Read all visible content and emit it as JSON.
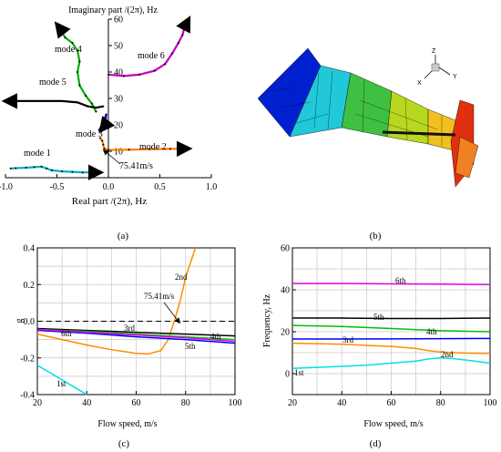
{
  "panels": {
    "a": {
      "caption": "(a)"
    },
    "b": {
      "caption": "(b)"
    },
    "c": {
      "caption": "(c)"
    },
    "d": {
      "caption": "(d)"
    }
  },
  "fem_axes": {
    "z": "Z",
    "y": "Y",
    "x": "X"
  },
  "colors": {
    "mode1": "#00b0b8",
    "mode2": "#ff8000",
    "mode3": "#0000ff",
    "mode4": "#00b000",
    "mode5": "#000000",
    "mode6": "#c000c0",
    "c1st": "#00e0e0",
    "c2nd": "#ff8c00",
    "c3rd": "#000000",
    "c4th": "#00c000",
    "c5th": "#0000ff",
    "c6th": "#e000e0"
  },
  "chart_data": [
    {
      "id": "a",
      "type": "scatter",
      "xlabel": "Real part /(2π), Hz",
      "ylabel": "Imaginary part /(2π), Hz",
      "xlim": [
        -1.0,
        1.0
      ],
      "ylim": [
        0,
        60
      ],
      "xticks": [
        "-1.0",
        "-0.5",
        "0.0",
        "0.5",
        "1.0"
      ],
      "yticks": [
        "10",
        "20",
        "30",
        "40",
        "50",
        "60"
      ],
      "annotations": [
        "75.41m/s"
      ],
      "series": [
        {
          "name": "mode 1",
          "x": [
            -0.95,
            -0.9,
            -0.8,
            -0.72,
            -0.65,
            -0.6,
            -0.55,
            -0.45,
            -0.35,
            -0.25,
            -0.15,
            -0.08
          ],
          "y": [
            3.5,
            3.6,
            3.8,
            4.0,
            4.2,
            3.5,
            2.8,
            2.4,
            2.2,
            2.0,
            2.0,
            2.0
          ]
        },
        {
          "name": "mode 2",
          "x": [
            -0.08,
            -0.06,
            -0.05,
            -0.04,
            0.0,
            0.2,
            0.4,
            0.6,
            0.78
          ],
          "y": [
            15,
            14,
            12.5,
            11,
            10.5,
            10.6,
            10.8,
            10.9,
            11.0
          ]
        },
        {
          "name": "mode 3",
          "x": [
            -0.09,
            -0.06,
            -0.04,
            -0.02,
            -0.03,
            -0.05,
            -0.07
          ],
          "y": [
            18,
            20,
            22,
            24,
            21,
            19,
            18
          ]
        },
        {
          "name": "mode 4",
          "x": [
            -0.12,
            -0.16,
            -0.22,
            -0.28,
            -0.3,
            -0.28,
            -0.3,
            -0.35,
            -0.42,
            -0.45,
            -0.48,
            -0.5
          ],
          "y": [
            25,
            28,
            31,
            35,
            40,
            44,
            48,
            51,
            53,
            55,
            57,
            58
          ]
        },
        {
          "name": "mode 5",
          "x": [
            -0.05,
            -0.12,
            -0.2,
            -0.3,
            -0.45,
            -0.6,
            -0.75,
            -0.9,
            -1.0
          ],
          "y": [
            27,
            26.5,
            27,
            28.5,
            29,
            29,
            29,
            29,
            29
          ]
        },
        {
          "name": "mode 6",
          "x": [
            0.0,
            0.15,
            0.3,
            0.45,
            0.55,
            0.62,
            0.68,
            0.72,
            0.74,
            0.78
          ],
          "y": [
            39,
            38.5,
            39,
            40.5,
            43,
            47,
            51,
            54,
            57,
            60
          ]
        }
      ]
    },
    {
      "id": "c",
      "type": "line",
      "xlabel": "Flow speed, m/s",
      "ylabel": "g",
      "xlim": [
        20,
        100
      ],
      "ylim": [
        -0.4,
        0.4
      ],
      "xticks": [
        "20",
        "40",
        "60",
        "80",
        "100"
      ],
      "yticks": [
        "-0.4",
        "-0.2",
        "0.0",
        "0.2",
        "0.4"
      ],
      "annotations": [
        "75.41m/s"
      ],
      "series": [
        {
          "name": "1st",
          "x": [
            20,
            25,
            30,
            35,
            40
          ],
          "y": [
            -0.24,
            -0.28,
            -0.32,
            -0.36,
            -0.4
          ]
        },
        {
          "name": "2nd",
          "x": [
            20,
            30,
            40,
            50,
            60,
            65,
            70,
            73,
            75.41,
            78,
            80,
            84
          ],
          "y": [
            -0.07,
            -0.1,
            -0.13,
            -0.155,
            -0.175,
            -0.178,
            -0.16,
            -0.1,
            0.0,
            0.12,
            0.24,
            0.42
          ]
        },
        {
          "name": "3rd",
          "x": [
            20,
            40,
            60,
            80,
            100
          ],
          "y": [
            -0.04,
            -0.05,
            -0.06,
            -0.07,
            -0.08
          ]
        },
        {
          "name": "4th",
          "x": [
            20,
            40,
            60,
            80,
            100
          ],
          "y": [
            -0.045,
            -0.055,
            -0.07,
            -0.085,
            -0.1
          ]
        },
        {
          "name": "5th",
          "x": [
            20,
            40,
            60,
            80,
            100
          ],
          "y": [
            -0.05,
            -0.065,
            -0.085,
            -0.1,
            -0.12
          ]
        },
        {
          "name": "6th",
          "x": [
            20,
            40,
            60,
            80,
            100
          ],
          "y": [
            -0.045,
            -0.06,
            -0.075,
            -0.09,
            -0.11
          ]
        }
      ]
    },
    {
      "id": "d",
      "type": "line",
      "xlabel": "Flow speed, m/s",
      "ylabel": "Frequency, Hz",
      "xlim": [
        20,
        100
      ],
      "ylim": [
        -10,
        60
      ],
      "xticks": [
        "20",
        "40",
        "60",
        "80",
        "100"
      ],
      "yticks": [
        "0",
        "20",
        "40",
        "60"
      ],
      "series": [
        {
          "name": "1st",
          "x": [
            20,
            30,
            40,
            50,
            60,
            70,
            75,
            80,
            85,
            90,
            100
          ],
          "y": [
            2.5,
            3,
            3.5,
            4,
            5,
            6,
            7,
            7.5,
            7.2,
            6.5,
            5
          ]
        },
        {
          "name": "2nd",
          "x": [
            20,
            30,
            40,
            50,
            60,
            70,
            75,
            80,
            85,
            90,
            100
          ],
          "y": [
            14.5,
            14.3,
            14,
            13.5,
            13,
            12,
            11,
            10.3,
            10,
            9.8,
            9.6
          ]
        },
        {
          "name": "3rd",
          "x": [
            20,
            40,
            60,
            80,
            100
          ],
          "y": [
            16.5,
            16.5,
            16.6,
            16.7,
            16.8
          ]
        },
        {
          "name": "4th",
          "x": [
            20,
            40,
            60,
            80,
            100
          ],
          "y": [
            23,
            22.5,
            21.5,
            20.5,
            20
          ]
        },
        {
          "name": "5th",
          "x": [
            20,
            40,
            60,
            80,
            100
          ],
          "y": [
            26.5,
            26.5,
            26.3,
            26.3,
            26.5
          ]
        },
        {
          "name": "6th",
          "x": [
            20,
            40,
            60,
            80,
            100
          ],
          "y": [
            43,
            43,
            42.8,
            42.7,
            42.5
          ]
        }
      ]
    }
  ]
}
